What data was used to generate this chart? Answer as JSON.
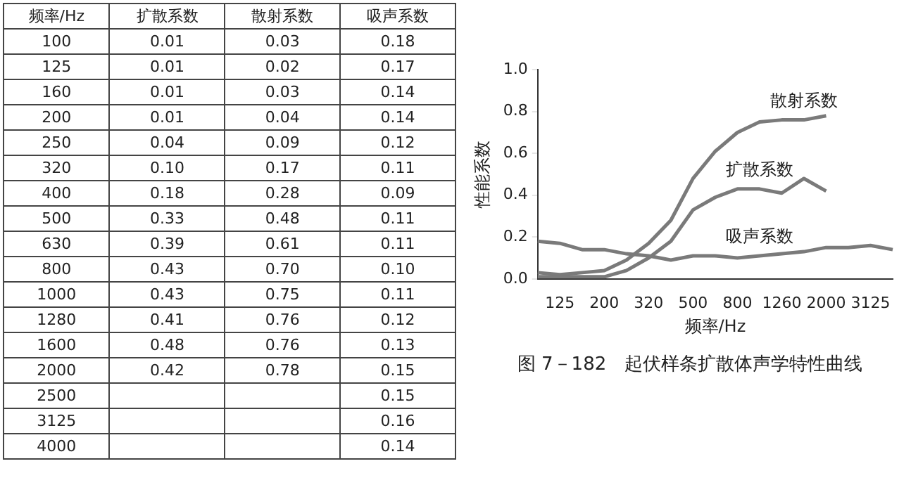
{
  "chart_data": [
    {
      "type": "other",
      "xlabel": "频率/Hz",
      "categories": [
        "100",
        "125",
        "160",
        "200",
        "250",
        "320",
        "400",
        "500",
        "630",
        "800",
        "1000",
        "1280",
        "1600",
        "2000",
        "2500",
        "3125",
        "4000"
      ],
      "series": [
        {
          "name": "扩散系数",
          "values": [
            0.01,
            0.01,
            0.01,
            0.01,
            0.04,
            0.1,
            0.18,
            0.33,
            0.39,
            0.43,
            0.43,
            0.41,
            0.48,
            0.42,
            null,
            null,
            null
          ],
          "value_labels": [
            "0.01",
            "0.01",
            "0.01",
            "0.01",
            "0.04",
            "0.10",
            "0.18",
            "0.33",
            "0.39",
            "0.43",
            "0.43",
            "0.41",
            "0.48",
            "0.42",
            null,
            null,
            null
          ]
        },
        {
          "name": "散射系数",
          "values": [
            0.03,
            0.02,
            0.03,
            0.04,
            0.09,
            0.17,
            0.28,
            0.48,
            0.61,
            0.7,
            0.75,
            0.76,
            0.76,
            0.78,
            null,
            null,
            null
          ],
          "value_labels": [
            "0.03",
            "0.02",
            "0.03",
            "0.04",
            "0.09",
            "0.17",
            "0.28",
            "0.48",
            "0.61",
            "0.70",
            "0.75",
            "0.76",
            "0.76",
            "0.78",
            null,
            null,
            null
          ]
        },
        {
          "name": "吸声系数",
          "values": [
            0.18,
            0.17,
            0.14,
            0.14,
            0.12,
            0.11,
            0.09,
            0.11,
            0.11,
            0.1,
            0.11,
            0.12,
            0.13,
            0.15,
            0.15,
            0.16,
            0.14
          ],
          "value_labels": [
            "0.18",
            "0.17",
            "0.14",
            "0.14",
            "0.12",
            "0.11",
            "0.09",
            "0.11",
            "0.11",
            "0.10",
            "0.11",
            "0.12",
            "0.13",
            "0.15",
            "0.15",
            "0.16",
            "0.14"
          ]
        }
      ]
    },
    {
      "type": "line",
      "xlabel": "频率/Hz",
      "ylabel": "性能系数",
      "categories": [
        null,
        "125",
        null,
        "200",
        null,
        "320",
        null,
        "500",
        null,
        "800",
        null,
        "1260",
        null,
        "2000",
        null,
        "3125",
        null
      ],
      "series": [
        {
          "name": "扩散系数",
          "color": "#7a7a7a",
          "values": [
            0.01,
            0.01,
            0.01,
            0.01,
            0.04,
            0.1,
            0.18,
            0.33,
            0.39,
            0.43,
            0.43,
            0.41,
            0.48,
            0.42,
            null,
            null,
            null
          ]
        },
        {
          "name": "散射系数",
          "color": "#7a7a7a",
          "values": [
            0.03,
            0.02,
            0.03,
            0.04,
            0.09,
            0.17,
            0.28,
            0.48,
            0.61,
            0.7,
            0.75,
            0.76,
            0.76,
            0.78,
            null,
            null,
            null
          ]
        },
        {
          "name": "吸声系数",
          "color": "#7a7a7a",
          "values": [
            0.18,
            0.17,
            0.14,
            0.14,
            0.12,
            0.11,
            0.09,
            0.11,
            0.11,
            0.1,
            0.11,
            0.12,
            0.13,
            0.15,
            0.15,
            0.16,
            0.14
          ]
        }
      ],
      "ylim": [
        0,
        1
      ],
      "yticks": [
        {
          "value": 0,
          "label": "0.0"
        },
        0.2,
        0.4,
        0.6,
        0.8,
        {
          "value": 1,
          "label": "1.0"
        }
      ],
      "annotations": [
        "图 7－182　起伏样条扩散体声学特性曲线"
      ]
    }
  ]
}
